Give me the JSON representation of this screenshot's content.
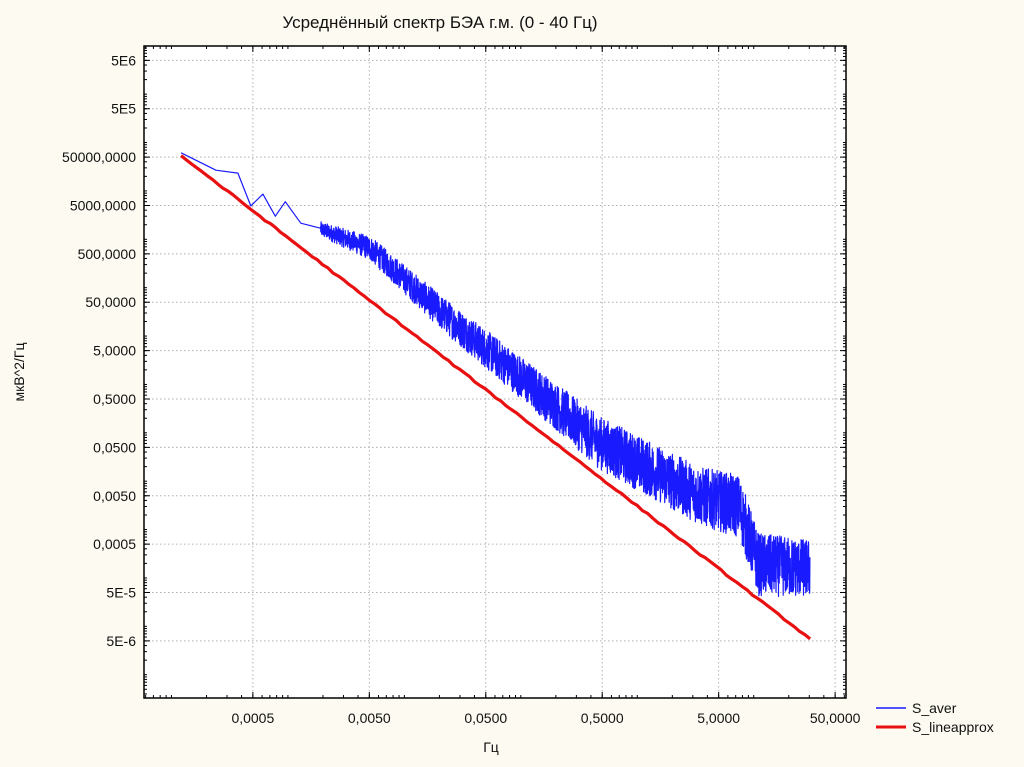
{
  "chart_data": {
    "type": "line",
    "title": "Усреднённый спектр БЭА г.м. (0 - 40 Гц)",
    "xlabel": "Гц",
    "ylabel": "мкВ^2/Гц",
    "x_scale": "log",
    "y_scale": "log",
    "xlim": [
      5.81e-05,
      62
    ],
    "ylim": [
      3.3e-07,
      9900000
    ],
    "grid": true,
    "legend_position": "bottom-right-outside",
    "x_ticks": [
      {
        "value": 0.0005,
        "label": "0,0005"
      },
      {
        "value": 0.005,
        "label": "0,0050"
      },
      {
        "value": 0.05,
        "label": "0,0500"
      },
      {
        "value": 0.5,
        "label": "0,5000"
      },
      {
        "value": 5,
        "label": "5,0000"
      },
      {
        "value": 50,
        "label": "50,0000"
      }
    ],
    "y_ticks": [
      {
        "value": 5000000,
        "label": "5E6"
      },
      {
        "value": 500000,
        "label": "5E5"
      },
      {
        "value": 50000,
        "label": "50000,0000"
      },
      {
        "value": 5000,
        "label": "5000,0000"
      },
      {
        "value": 500,
        "label": "500,0000"
      },
      {
        "value": 50,
        "label": "50,0000"
      },
      {
        "value": 5,
        "label": "5,0000"
      },
      {
        "value": 0.5,
        "label": "0,5000"
      },
      {
        "value": 0.05,
        "label": "0,0500"
      },
      {
        "value": 0.005,
        "label": "0,0050"
      },
      {
        "value": 0.0005,
        "label": "0,0005"
      },
      {
        "value": 5e-05,
        "label": "5E-5"
      },
      {
        "value": 5e-06,
        "label": "5E-6"
      }
    ],
    "series": [
      {
        "name": "S_aver",
        "color": "#1a1aff",
        "description_values": "averaged spectrum; envelope points [frequency, center value, noise half-width in decades]",
        "points": [
          [
            0.000121,
            61500,
            0
          ],
          [
            0.000241,
            26800,
            0
          ],
          [
            0.000372,
            23400,
            0
          ],
          [
            0.00048,
            4900,
            0
          ],
          [
            0.00061,
            8600,
            0
          ],
          [
            0.00078,
            3000,
            0
          ],
          [
            0.00095,
            6000,
            0
          ],
          [
            0.00129,
            2150,
            0
          ],
          [
            0.0019,
            1700,
            0.15
          ],
          [
            0.0051,
            690,
            0.25
          ],
          [
            0.0202,
            35,
            0.35
          ],
          [
            0.119,
            1.1,
            0.45
          ],
          [
            0.47,
            0.072,
            0.55
          ],
          [
            3.4,
            0.0058,
            0.6
          ],
          [
            7.5,
            0.0035,
            0.65
          ],
          [
            11,
            0.00022,
            0.65
          ],
          [
            30.5,
            0.00018,
            0.6
          ]
        ]
      },
      {
        "name": "S_lineapprox",
        "color": "#e81010",
        "points": [
          [
            0.000121,
            53600
          ],
          [
            30.5,
            5.5e-06
          ]
        ]
      }
    ]
  }
}
